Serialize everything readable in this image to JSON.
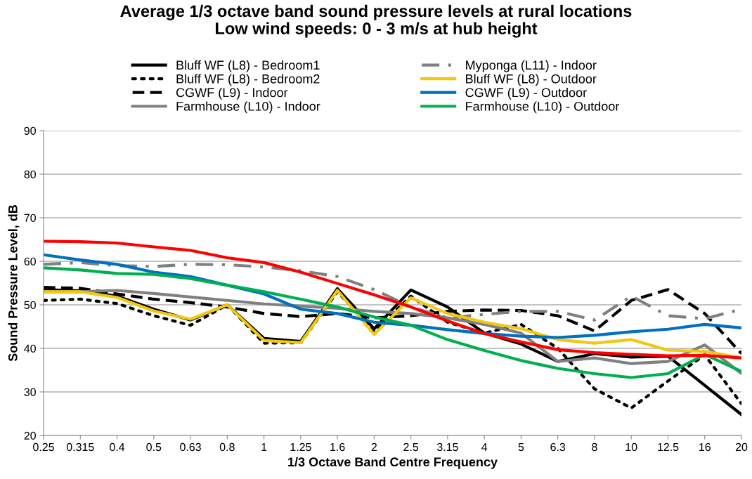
{
  "chart_data": {
    "type": "line",
    "title": "Average 1/3 octave band sound pressure levels at rural locations\nLow wind speeds: 0 - 3 m/s at hub height",
    "xlabel": "1/3 Octave Band Centre Frequency",
    "ylabel": "Sound Pressure Level, dB",
    "categories": [
      "0.25",
      "0.315",
      "0.4",
      "0.5",
      "0.63",
      "0.8",
      "1",
      "1.25",
      "1.6",
      "2",
      "2.5",
      "3.15",
      "4",
      "5",
      "6.3",
      "8",
      "10",
      "12.5",
      "16",
      "20"
    ],
    "ylim": [
      20,
      90
    ],
    "yticks": [
      20,
      30,
      40,
      50,
      60,
      70,
      80,
      90
    ],
    "grid": "y",
    "legend": "top",
    "marker": "none",
    "series": [
      {
        "name": "Bluff WF (L8) - Bedroom1",
        "color": "#000000",
        "line_style": "solid",
        "values": [
          53.5,
          53.2,
          52,
          49,
          46.5,
          50,
          42.3,
          41.6,
          53.7,
          44.5,
          53.4,
          49.5,
          43.5,
          41,
          37,
          38.8,
          38,
          38.2,
          31.5,
          24.8
        ]
      },
      {
        "name": "Bluff WF (L8) - Bedroom2",
        "color": "#000000",
        "line_style": "dotted",
        "values": [
          51,
          51.3,
          50.3,
          47.5,
          45.3,
          50,
          41.2,
          41.3,
          53,
          44,
          52,
          46,
          43.5,
          45.5,
          40,
          30.7,
          26.3,
          32.5,
          38.5,
          27.3
        ]
      },
      {
        "name": "CGWF (L9) - Indoor",
        "color": "#000000",
        "line_style": "dashed",
        "values": [
          54,
          53.8,
          52.5,
          51.3,
          50.5,
          49.5,
          48,
          47.3,
          48,
          47,
          47.5,
          48.5,
          48.8,
          48.7,
          47.5,
          44,
          51,
          53.5,
          48,
          38.8
        ]
      },
      {
        "name": "Farmhouse (L10) - Indoor",
        "color": "#808080",
        "line_style": "solid",
        "values": [
          53,
          53,
          53.3,
          52.6,
          51.8,
          51,
          50.2,
          49.7,
          49.2,
          48.5,
          48,
          47,
          45.5,
          43.5,
          37,
          37.8,
          36.5,
          37,
          40.8,
          34.2
        ]
      },
      {
        "name": "Myponga (L11) - Indoor",
        "color": "#808080",
        "line_style": "dashdot",
        "values": [
          59.3,
          59.7,
          59,
          58.8,
          59.3,
          59.2,
          58.7,
          57.8,
          56.5,
          53.5,
          49.5,
          47,
          47.8,
          48.5,
          48.5,
          46.5,
          52,
          47.5,
          46.8,
          49
        ]
      },
      {
        "name": "Bluff WF (L8) - Outdoor",
        "color": "#f2c80f",
        "line_style": "solid",
        "values": [
          53,
          53,
          51.7,
          48.6,
          46.7,
          50,
          41.8,
          41.3,
          53.3,
          43.2,
          51.6,
          48,
          46,
          44.5,
          42,
          41.2,
          42,
          39.6,
          39.3,
          37.8
        ]
      },
      {
        "name": "CGWF (L9) - Outdoor",
        "color": "#0070c0",
        "line_style": "solid",
        "values": [
          61.5,
          60.3,
          59.3,
          57.5,
          56.5,
          54.5,
          52.5,
          49,
          48,
          46,
          45.3,
          44.3,
          43.4,
          42.8,
          42.5,
          43,
          43.8,
          44.4,
          45.5,
          44.7
        ]
      },
      {
        "name": "Farmhouse (L10) - Outdoor",
        "color": "#00b050",
        "line_style": "solid",
        "values": [
          58.5,
          58,
          57.2,
          57,
          56,
          54.5,
          53,
          51.3,
          49.5,
          47.2,
          45.3,
          42,
          39.5,
          37.2,
          35.4,
          34.2,
          33.3,
          34.2,
          38.6,
          34.7
        ]
      },
      {
        "color": "#ff0000",
        "line_style": "solid",
        "values": [
          64.6,
          64.5,
          64.2,
          63.3,
          62.5,
          60.8,
          59.7,
          57.5,
          54.9,
          52.3,
          49.5,
          46.3,
          43.4,
          41.5,
          39.7,
          39,
          38.6,
          38.3,
          38.4,
          37.8
        ]
      }
    ]
  }
}
